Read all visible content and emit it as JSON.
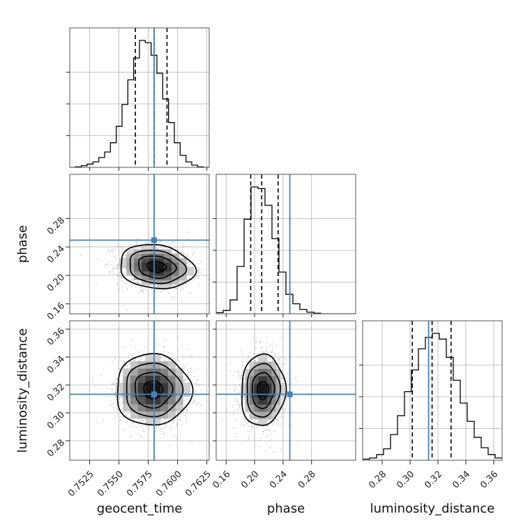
{
  "chart_data": {
    "type": "corner",
    "parameters": [
      "geocent_time",
      "phase",
      "luminosity_distance"
    ],
    "axis_labels": {
      "x": [
        "geocent_time",
        "phase",
        "luminosity_distance"
      ],
      "y": [
        "",
        "phase",
        "luminosity_distance"
      ]
    },
    "ranges": {
      "geocent_time": [
        0.7508,
        0.7627
      ],
      "phase": [
        0.146,
        0.342
      ],
      "luminosity_distance": [
        0.266,
        0.366
      ]
    },
    "ticks": {
      "geocent_time": [
        0.7525,
        0.755,
        0.7575,
        0.76,
        0.7625
      ],
      "phase": [
        0.16,
        0.2,
        0.24,
        0.28
      ],
      "luminosity_distance": [
        0.28,
        0.3,
        0.32,
        0.34,
        0.36
      ]
    },
    "tick_labels": {
      "geocent_time": [
        "0.7525",
        "0.7550",
        "0.7575",
        "0.7600",
        "0.7625"
      ],
      "phase": [
        "0.16",
        "0.20",
        "0.24",
        "0.28"
      ],
      "luminosity_distance": [
        "0.28",
        "0.30",
        "0.32",
        "0.34",
        "0.36"
      ]
    },
    "injected_values": {
      "geocent_time": 0.758,
      "phase": 0.2495,
      "luminosity_distance": 0.3133
    },
    "quantiles": {
      "geocent_time": [
        0.7564,
        0.758,
        0.7591
      ],
      "phase": [
        0.1945,
        0.21,
        0.233
      ],
      "luminosity_distance": [
        0.3016,
        0.3158,
        0.3294
      ]
    },
    "histograms": {
      "geocent_time": {
        "edges_range": [
          0.7508,
          0.7627
        ],
        "counts": [
          0,
          1,
          3,
          6,
          10,
          18,
          28,
          45,
          75,
          115,
          160,
          200,
          232,
          228,
          205,
          172,
          125,
          82,
          45,
          22,
          10,
          4,
          1,
          0
        ]
      },
      "phase": {
        "edges_range": [
          0.146,
          0.342
        ],
        "counts": [
          2,
          6,
          25,
          85,
          170,
          228,
          225,
          195,
          135,
          75,
          35,
          18,
          8,
          3,
          1,
          0,
          0,
          0,
          0,
          0
        ]
      },
      "luminosity_distance": {
        "edges_range": [
          0.266,
          0.366
        ],
        "counts": [
          2,
          4,
          10,
          20,
          45,
          78,
          120,
          158,
          195,
          215,
          222,
          212,
          180,
          140,
          100,
          68,
          40,
          22,
          10,
          4
        ]
      }
    },
    "joint": [
      {
        "x": "geocent_time",
        "y": "phase",
        "mean": [
          0.7582,
          0.212
        ],
        "sd": [
          0.0016,
          0.0155
        ],
        "corr": -0.15
      },
      {
        "x": "geocent_time",
        "y": "luminosity_distance",
        "mean": [
          0.7579,
          0.3165
        ],
        "sd": [
          0.0016,
          0.0128
        ],
        "corr": 0.0
      },
      {
        "x": "phase",
        "y": "luminosity_distance",
        "mean": [
          0.2115,
          0.3162
        ],
        "sd": [
          0.0155,
          0.0128
        ],
        "corr": 0.05
      }
    ],
    "contour_levels_sigma": [
      0.5,
      1.0,
      1.5,
      2.0
    ],
    "grid": true,
    "colors": {
      "truth": "#4682b4",
      "histogram": "#000000",
      "quantile": "#000000",
      "scatter": "#9a9a9a"
    }
  }
}
